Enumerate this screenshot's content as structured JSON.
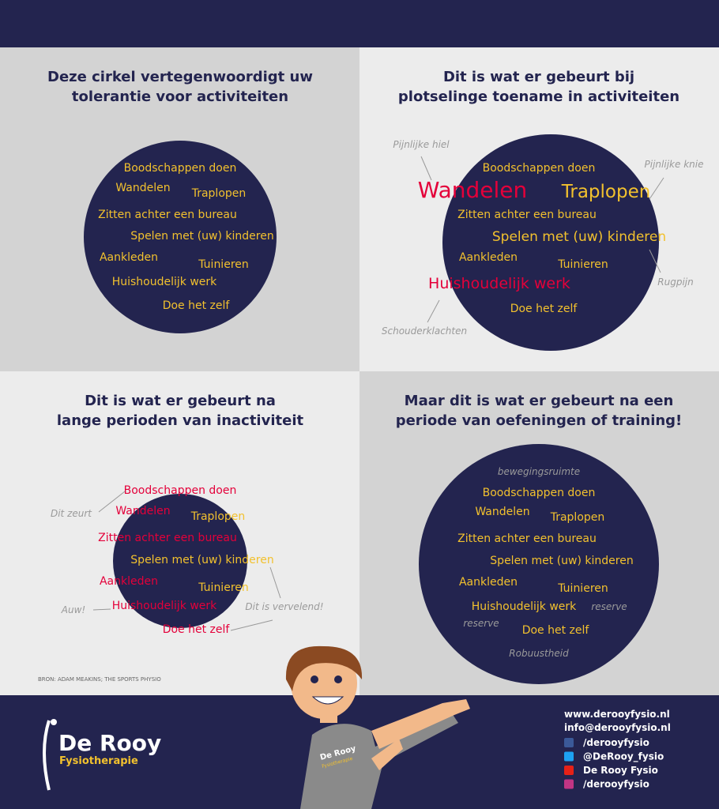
{
  "panels": [
    {
      "title": [
        "Deze cirkel vertegenwoordigt uw",
        "tolerantie voor activiteiten"
      ],
      "items": [
        "Boodschappen doen",
        "Wandelen",
        "Traplopen",
        "Zitten achter een bureau",
        "Spelen met (uw) kinderen",
        "Aankleden",
        "Tuinieren",
        "Huishoudelijk werk",
        "Doe het zelf"
      ],
      "annotations": []
    },
    {
      "title": [
        "Dit is wat er gebeurt bij",
        "plotselinge toename in activiteiten"
      ],
      "items": [
        "Boodschappen doen",
        "Wandelen",
        "Traplopen",
        "Zitten achter een bureau",
        "Spelen met (uw) kinderen",
        "Aankleden",
        "Tuinieren",
        "Huishoudelijk werk",
        "Doe het zelf"
      ],
      "annotations": [
        "Pijnlijke hiel",
        "Pijnlijke knie",
        "Rugpijn",
        "Schouderklachten"
      ]
    },
    {
      "title": [
        "Dit is wat er gebeurt na",
        "lange perioden van inactiviteit"
      ],
      "items": [
        "Boodschappen doen",
        "Wandelen",
        "Traplopen",
        "Zitten achter een bureau",
        "Spelen met (uw) kinderen",
        "Aankleden",
        "Tuinieren",
        "Huishoudelijk werk",
        "Doe het zelf"
      ],
      "annotations": [
        "Dit zeurt",
        "Auw!",
        "Dit is vervelend!"
      ]
    },
    {
      "title": [
        "Maar dit is wat er gebeurt na een",
        "periode van oefeningen of training!"
      ],
      "items": [
        "Boodschappen doen",
        "Wandelen",
        "Traplopen",
        "Zitten achter een bureau",
        "Spelen met (uw) kinderen",
        "Aankleden",
        "Tuinieren",
        "Huishoudelijk werk",
        "Doe het zelf"
      ],
      "annotations": [
        "bewegingsruimte",
        "reserve",
        "reserve",
        "Robuustheid"
      ]
    }
  ],
  "source": "BRON: ADAM MEAKINS; THE SPORTS PHYSIO",
  "footer": {
    "brand": "De Rooy",
    "tagline": "Fysiotherapie",
    "shirt": [
      "De Rooy",
      "Fysiotherapie"
    ],
    "contact": [
      "www.derooyfysio.nl",
      "info@derooyfysio.nl"
    ],
    "social": [
      "/derooyfysio",
      "@DeRooy_fysio",
      "De Rooy Fysio",
      "/derooyfysio"
    ]
  }
}
